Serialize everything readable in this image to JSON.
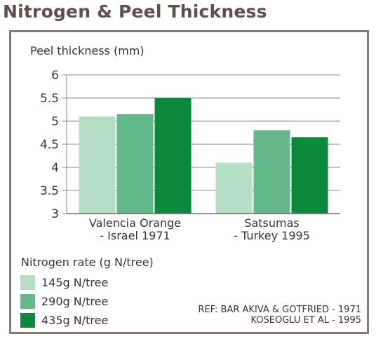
{
  "title": "Nitrogen & Peel Thickness",
  "chart_data": {
    "type": "bar",
    "title": "Nitrogen & Peel Thickness",
    "ylabel": "Peel thickness (mm)",
    "xlabel": "",
    "ylim": [
      3,
      6
    ],
    "yticks": [
      "3",
      "3.5",
      "4",
      "4.5",
      "5",
      "5.5",
      "6"
    ],
    "grid": true,
    "categories": [
      [
        "Valencia Orange",
        "- Israel 1971"
      ],
      [
        "Satsumas",
        "- Turkey 1995"
      ]
    ],
    "series": [
      {
        "name": "145g N/tree",
        "color": "#b5dfc4",
        "values": [
          5.1,
          4.1
        ]
      },
      {
        "name": "290g N/tree",
        "color": "#63b98a",
        "values": [
          5.15,
          4.8
        ]
      },
      {
        "name": "435g N/tree",
        "color": "#0a8a3d",
        "values": [
          5.5,
          4.65
        ]
      }
    ],
    "legend_title": "Nitrogen rate (g N/tree)",
    "legend_position": "bottom-left"
  },
  "reference": {
    "line1": "REF: BAR AKIVA & GOTFRIED - 1971",
    "line2": "KOSEOGLU ET AL -  1995"
  }
}
